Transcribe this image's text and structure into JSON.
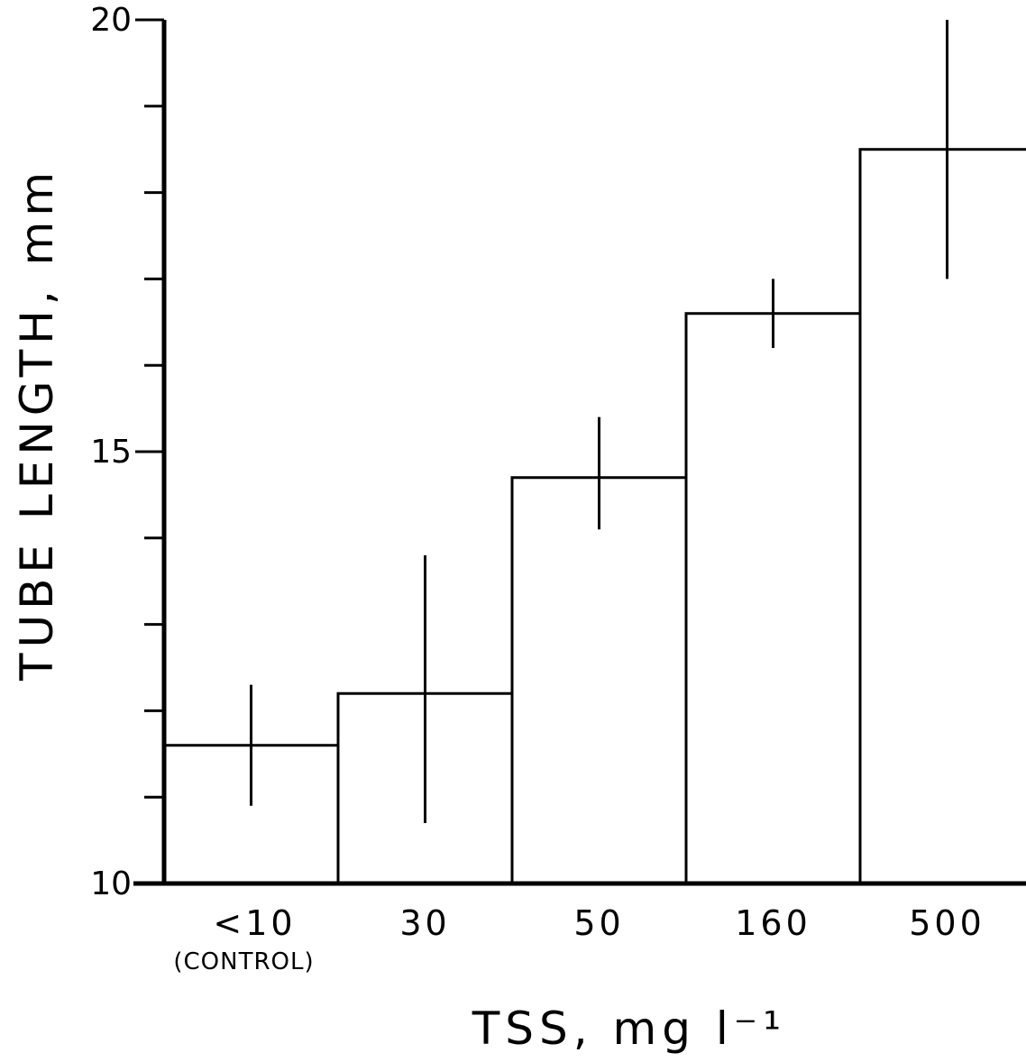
{
  "chart_data": {
    "type": "bar",
    "title": "",
    "xlabel": "TSS, mg l⁻¹",
    "ylabel": "TUBE LENGTH, mm",
    "categories": [
      "<10",
      "30",
      "50",
      "160",
      "500"
    ],
    "category_sublabels": [
      "(CONTROL)",
      "",
      "",
      "",
      ""
    ],
    "values": [
      11.6,
      12.2,
      14.7,
      16.6,
      18.5
    ],
    "error_low": [
      10.9,
      10.7,
      14.1,
      16.2,
      17.0
    ],
    "error_high": [
      12.3,
      13.8,
      15.4,
      17.0,
      20.0
    ],
    "ylim": [
      10,
      20
    ],
    "yticks": [
      10,
      11,
      12,
      13,
      14,
      15,
      16,
      17,
      18,
      19,
      20
    ],
    "ytick_labels": [
      "10",
      "",
      "",
      "",
      "",
      "15",
      "",
      "",
      "",
      "",
      "20"
    ],
    "grid": false,
    "colors": {
      "bar_fill": "#ffffff",
      "stroke": "#000000"
    }
  }
}
